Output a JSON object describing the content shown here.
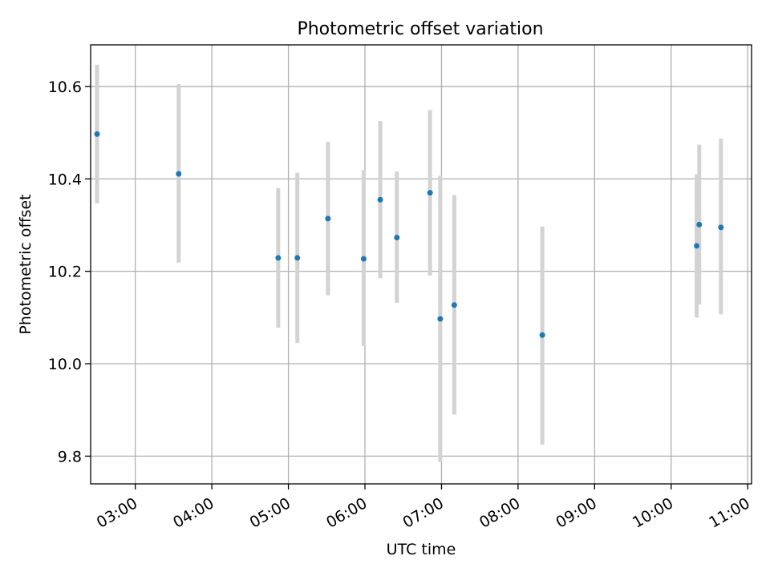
{
  "chart_data": {
    "type": "scatter",
    "title": "Photometric offset variation",
    "xlabel": "UTC time",
    "ylabel": "Photometric offset",
    "x_ticks": [
      "03:00",
      "04:00",
      "05:00",
      "06:00",
      "07:00",
      "08:00",
      "09:00",
      "10:00",
      "11:00"
    ],
    "y_ticks": [
      "9.8",
      "10.0",
      "10.2",
      "10.4",
      "10.6"
    ],
    "xlim": [
      "02:25",
      "11:03"
    ],
    "ylim": [
      9.74,
      10.69
    ],
    "grid": true,
    "colors": {
      "points": "#1f77b4",
      "errorbars": "#d3d3d3",
      "grid": "#b0b0b0"
    },
    "points": [
      {
        "x": "02:30",
        "y": 10.497,
        "y_low": 10.347,
        "y_high": 10.647
      },
      {
        "x": "03:34",
        "y": 10.411,
        "y_low": 10.219,
        "y_high": 10.605
      },
      {
        "x": "04:52",
        "y": 10.229,
        "y_low": 10.078,
        "y_high": 10.38
      },
      {
        "x": "05:07",
        "y": 10.229,
        "y_low": 10.045,
        "y_high": 10.413
      },
      {
        "x": "05:31",
        "y": 10.314,
        "y_low": 10.148,
        "y_high": 10.48
      },
      {
        "x": "05:59",
        "y": 10.227,
        "y_low": 10.038,
        "y_high": 10.419
      },
      {
        "x": "06:12",
        "y": 10.355,
        "y_low": 10.185,
        "y_high": 10.525
      },
      {
        "x": "06:25",
        "y": 10.273,
        "y_low": 10.132,
        "y_high": 10.416
      },
      {
        "x": "06:51",
        "y": 10.37,
        "y_low": 10.191,
        "y_high": 10.549
      },
      {
        "x": "06:59",
        "y": 10.097,
        "y_low": 9.787,
        "y_high": 10.407
      },
      {
        "x": "07:10",
        "y": 10.127,
        "y_low": 9.89,
        "y_high": 10.365
      },
      {
        "x": "08:19",
        "y": 10.062,
        "y_low": 9.825,
        "y_high": 10.297
      },
      {
        "x": "10:20",
        "y": 10.255,
        "y_low": 10.1,
        "y_high": 10.41
      },
      {
        "x": "10:22",
        "y": 10.301,
        "y_low": 10.128,
        "y_high": 10.474
      },
      {
        "x": "10:39",
        "y": 10.295,
        "y_low": 10.107,
        "y_high": 10.487
      }
    ]
  }
}
